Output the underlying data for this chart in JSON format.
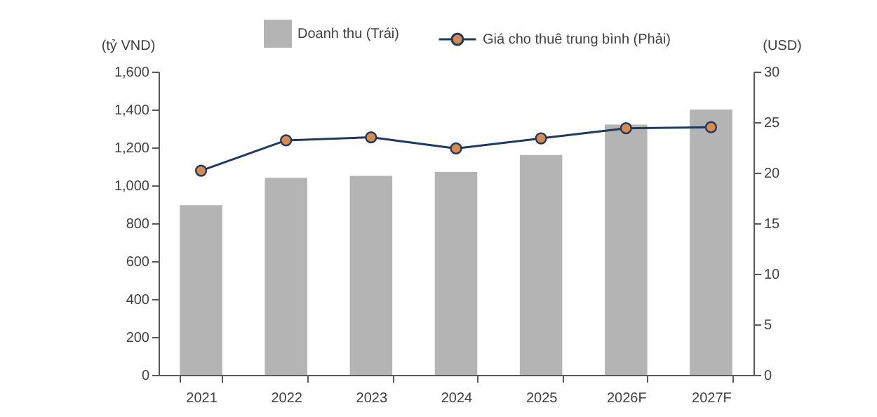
{
  "chart_data": {
    "type": "bar",
    "ylabel": "(tỷ VND)",
    "y2label": "(USD)",
    "categories": [
      "2021",
      "2022",
      "2023",
      "2024",
      "2025",
      "2026F",
      "2027F"
    ],
    "series": [
      {
        "name": "Doanh thu (Trái)",
        "color": "#b4b4b4",
        "values": [
          895,
          1040,
          1050,
          1070,
          1160,
          1320,
          1400
        ]
      },
      {
        "name": "Giá cho thuê trung bình (Phải)",
        "type": "line",
        "axis": "y2",
        "color": "#1f3a5f",
        "values": [
          20.2,
          23.2,
          23.5,
          22.4,
          23.4,
          24.4,
          24.5
        ]
      }
    ],
    "ylim": [
      0,
      1600
    ],
    "yticks": [
      0,
      200,
      400,
      600,
      800,
      {
        "value": 1000,
        "label": "1,000"
      },
      {
        "value": 1200,
        "label": "1,200"
      },
      {
        "value": 1400,
        "label": "1,400"
      },
      {
        "value": 1600,
        "label": "1,600"
      }
    ],
    "y2lim": [
      0,
      30
    ],
    "y2ticks": [
      0,
      5,
      10,
      15,
      20,
      25,
      30
    ],
    "legend": "top",
    "marker": "circle",
    "line_style": "solid",
    "grid": false
  }
}
